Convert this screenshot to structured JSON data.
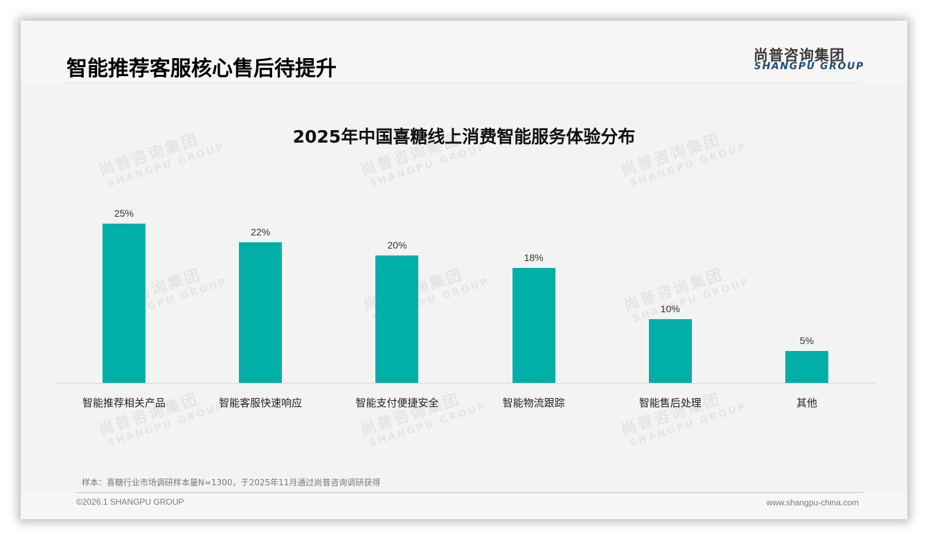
{
  "header": {
    "title": "智能推荐客服核心售后待提升",
    "logo_cn": "尚普咨询集团",
    "logo_en": "SHANGPU GROUP"
  },
  "watermark": {
    "cn": "尚普咨询集团",
    "en": "SHANGPU GROUP"
  },
  "chart_data": {
    "type": "bar",
    "title": "2025年中国喜糖线上消费智能服务体验分布",
    "categories": [
      "智能推荐相关产品",
      "智能客服快速响应",
      "智能支付便捷安全",
      "智能物流跟踪",
      "智能售后处理",
      "其他"
    ],
    "values": [
      25,
      22,
      20,
      18,
      10,
      5
    ],
    "value_labels": [
      "25%",
      "22%",
      "20%",
      "18%",
      "10%",
      "5%"
    ],
    "unit": "%",
    "xlabel": "",
    "ylabel": "",
    "ylim": [
      0,
      27
    ],
    "grid": false,
    "legend": "none",
    "bar_color": "#00b0a8"
  },
  "footer": {
    "note": "样本：喜糖行业市场调研样本量N=1300，于2025年11月通过尚普咨询调研获得",
    "copyright": "©2026.1 SHANGPU GROUP",
    "website": "www.shangpu-china.com"
  }
}
